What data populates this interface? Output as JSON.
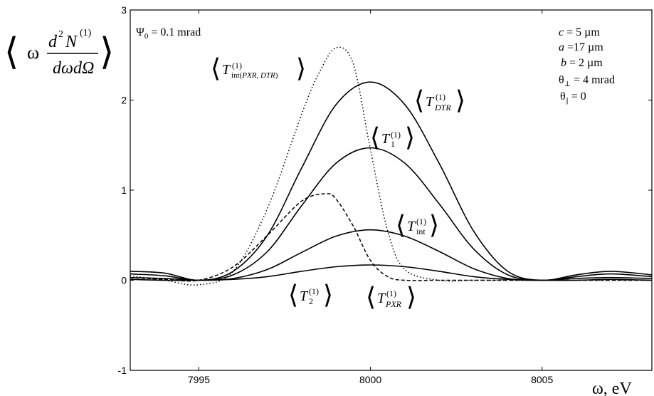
{
  "chart_data": {
    "type": "line",
    "xlabel": "ω, eV",
    "ylabel": "⟨ω d²N⁽¹⁾/dωdΩ⟩",
    "xlim": [
      7993,
      8008.2
    ],
    "ylim": [
      -1,
      3
    ],
    "xticks": [
      7995,
      8000,
      8005
    ],
    "yticks": [
      -1,
      0,
      1,
      2,
      3
    ],
    "grid": false,
    "params": {
      "psi": "Ψ₀ = 0.1 mrad",
      "c": "c = 5 µm",
      "a": "a =17 µm",
      "b": "b = 2 µm",
      "theta_perp": "θ⊥ = 4 mrad",
      "theta_par": "θ|| = 0"
    },
    "series": [
      {
        "name": "⟨T_int(PXR,DTR)^(1)⟩",
        "style": "dotted",
        "x": [
          7993,
          7994,
          7995,
          7996,
          7997,
          7998,
          7998.5,
          7999,
          7999.5,
          8000,
          8000.5,
          8001,
          8002,
          8003,
          8004,
          8005,
          8006,
          8007,
          8008.2
        ],
        "y": [
          0.05,
          0.0,
          -0.05,
          0.1,
          0.8,
          1.85,
          2.3,
          2.58,
          2.4,
          1.45,
          0.55,
          0.12,
          0.0,
          0.0,
          0.0,
          0.0,
          0.0,
          0.0,
          0.0
        ]
      },
      {
        "name": "⟨T_DTR^(1)⟩",
        "style": "solid",
        "x": [
          7993,
          7994,
          7995,
          7996,
          7997,
          7998,
          7999,
          8000,
          8001,
          8002,
          8003,
          8004,
          8005,
          8006,
          8007,
          8008.2
        ],
        "y": [
          0.1,
          0.08,
          0.0,
          0.1,
          0.5,
          1.25,
          1.95,
          2.2,
          1.95,
          1.3,
          0.55,
          0.1,
          0.0,
          0.06,
          0.1,
          0.06
        ]
      },
      {
        "name": "⟨T_1^(1)⟩",
        "style": "solid",
        "x": [
          7993,
          7994,
          7995,
          7996,
          7997,
          7998,
          7999,
          8000,
          8001,
          8002,
          8003,
          8004,
          8005,
          8006,
          8007,
          8008.2
        ],
        "y": [
          0.07,
          0.05,
          0.0,
          0.06,
          0.32,
          0.83,
          1.3,
          1.47,
          1.3,
          0.85,
          0.35,
          0.06,
          0.0,
          0.04,
          0.07,
          0.04
        ]
      },
      {
        "name": "⟨T_int^(1)⟩",
        "style": "solid",
        "x": [
          7993,
          7994,
          7995,
          7996,
          7997,
          7998,
          7999,
          8000,
          8001,
          8002,
          8003,
          8004,
          8005,
          8006,
          8007,
          8008.2
        ],
        "y": [
          0.03,
          0.02,
          0.0,
          0.02,
          0.12,
          0.31,
          0.49,
          0.56,
          0.49,
          0.32,
          0.13,
          0.02,
          0.0,
          0.02,
          0.03,
          0.02
        ]
      },
      {
        "name": "⟨T_2^(1)⟩",
        "style": "solid",
        "x": [
          7993,
          7994,
          7995,
          7996,
          7997,
          7998,
          7999,
          8000,
          8001,
          8002,
          8003,
          8004,
          8005,
          8006,
          8007,
          8008.2
        ],
        "y": [
          0.01,
          0.0,
          0.0,
          0.01,
          0.04,
          0.1,
          0.15,
          0.17,
          0.15,
          0.1,
          0.04,
          0.01,
          0.0,
          0.0,
          0.01,
          0.0
        ]
      },
      {
        "name": "⟨T_PXR^(1)⟩",
        "style": "dashed",
        "x": [
          7993,
          7994,
          7995,
          7996,
          7997,
          7998,
          7998.7,
          7999,
          7999.5,
          8000,
          8000.5,
          8001,
          8002,
          8003,
          8004,
          8005,
          8006,
          8007,
          8008.2
        ],
        "y": [
          0.03,
          0.01,
          0.0,
          0.15,
          0.5,
          0.88,
          0.96,
          0.9,
          0.6,
          0.22,
          0.04,
          0.0,
          0.0,
          0.0,
          0.0,
          0.0,
          0.0,
          0.0,
          0.0
        ]
      }
    ]
  }
}
